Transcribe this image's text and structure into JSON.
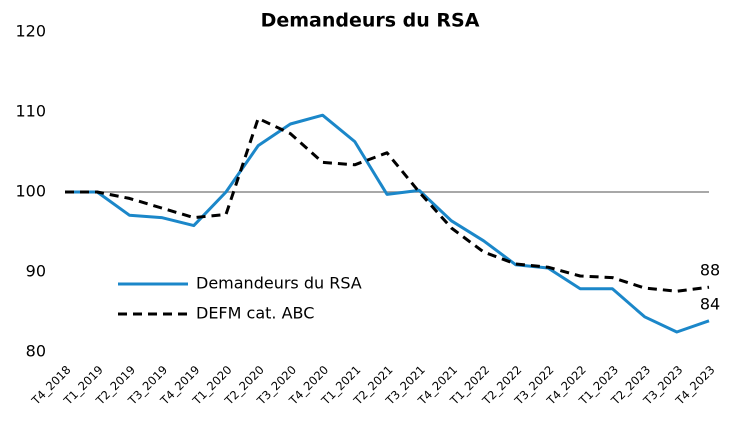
{
  "chart_data": {
    "type": "line",
    "title": "Demandeurs du RSA",
    "categories": [
      "T4_2018",
      "T1_2019",
      "T2_2019",
      "T3_2019",
      "T4_2019",
      "T1_2020",
      "T2_2020",
      "T3_2020",
      "T4_2020",
      "T1_2021",
      "T2_2021",
      "T3_2021",
      "T4_2021",
      "T1_2022",
      "T2_2022",
      "T3_2022",
      "T4_2022",
      "T1_2023",
      "T2_2023",
      "T3_2023",
      "T4_2023"
    ],
    "series": [
      {
        "name": "Demandeurs du RSA",
        "color": "#1b87c9",
        "dash": false,
        "values": [
          100,
          100,
          97.1,
          96.8,
          95.8,
          100,
          105.8,
          108.5,
          109.6,
          106.3,
          99.7,
          100.2,
          96.4,
          93.9,
          90.9,
          90.5,
          87.9,
          87.9,
          84.4,
          82.5,
          83.9
        ],
        "value_labels": [
          null,
          null,
          null,
          null,
          null,
          null,
          null,
          null,
          null,
          null,
          null,
          null,
          null,
          null,
          null,
          null,
          null,
          null,
          null,
          null,
          "84"
        ]
      },
      {
        "name": "DEFM cat. ABC",
        "color": "#000000",
        "dash": true,
        "values": [
          100,
          100,
          99.2,
          98,
          96.8,
          97.2,
          109.2,
          107.3,
          103.7,
          103.4,
          104.9,
          100,
          95.5,
          92.5,
          91,
          90.6,
          89.5,
          89.3,
          88,
          87.6,
          88.1
        ],
        "value_labels": [
          null,
          null,
          null,
          null,
          null,
          null,
          null,
          null,
          null,
          null,
          null,
          null,
          null,
          null,
          null,
          null,
          null,
          null,
          null,
          null,
          "88"
        ]
      }
    ],
    "ylim": [
      80,
      120
    ],
    "yticks": [
      80,
      90,
      100,
      110,
      120
    ],
    "reference_line": 100,
    "grid": false
  }
}
